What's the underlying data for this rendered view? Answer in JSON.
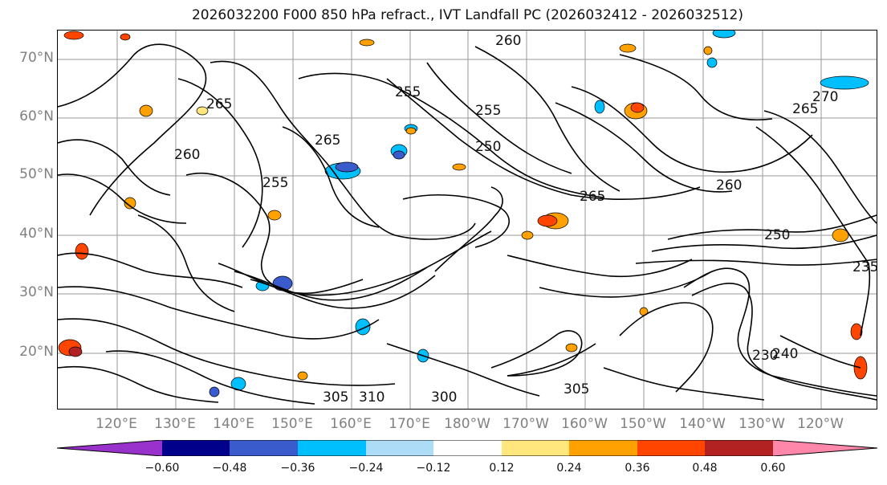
{
  "title": "2026032200 F000 850 hPa refract., IVT Landfall PC (2026032412 - 2026032512)",
  "map": {
    "latitude_labels": [
      "70°N",
      "60°N",
      "50°N",
      "40°N",
      "30°N",
      "20°N"
    ],
    "longitude_labels": [
      "120°E",
      "130°E",
      "140°E",
      "150°E",
      "160°E",
      "170°E",
      "180°W",
      "170°W",
      "160°W",
      "150°W",
      "140°W",
      "130°W",
      "120°W"
    ],
    "contour_labels": [
      "260",
      "265",
      "255",
      "255",
      "265",
      "250",
      "265",
      "255",
      "260",
      "270",
      "265",
      "260",
      "250",
      "305",
      "310",
      "300",
      "305",
      "230",
      "240",
      "235"
    ],
    "line_color": "#000000",
    "grid_color": "#999999"
  },
  "colorbar": {
    "colors": [
      "#9932CC",
      "#00008B",
      "#3A5BCB",
      "#00BFFF",
      "#ADDCF7",
      "#FFFFFF",
      "#FFE77D",
      "#FFA100",
      "#FF4500",
      "#B22222",
      "#FF88AA"
    ],
    "tick_labels": [
      "−0.60",
      "−0.48",
      "−0.36",
      "−0.24",
      "−0.12",
      "0.12",
      "0.24",
      "0.36",
      "0.48",
      "0.60"
    ]
  }
}
